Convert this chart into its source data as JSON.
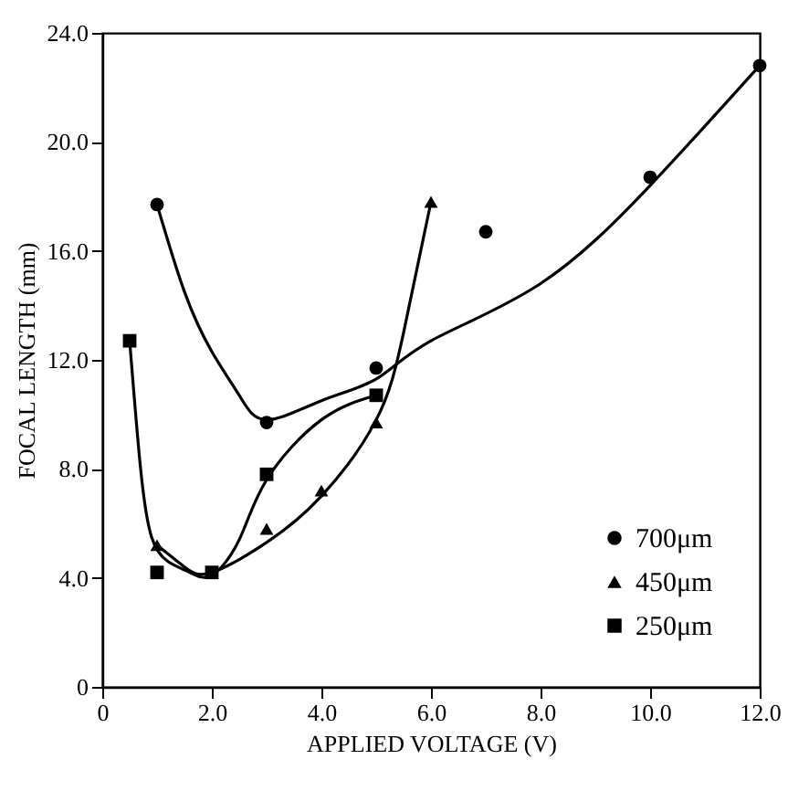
{
  "chart_data": {
    "type": "scatter",
    "xlabel": "APPLIED VOLTAGE (V)",
    "ylabel": "FOCAL LENGTH (mm)",
    "xlim": [
      0,
      12
    ],
    "xticks": [
      0,
      {
        "value": 2,
        "label": "2.0"
      },
      {
        "value": 4,
        "label": "4.0"
      },
      {
        "value": 6,
        "label": "6.0"
      },
      {
        "value": 8,
        "label": "8.0"
      },
      {
        "value": 10,
        "label": "10.0"
      },
      {
        "value": 12,
        "label": "12.0"
      }
    ],
    "ylim": [
      0,
      24
    ],
    "yticks": [
      0,
      {
        "value": 4,
        "label": "4.0"
      },
      {
        "value": 8,
        "label": "8.0"
      },
      {
        "value": 12,
        "label": "12.0"
      },
      {
        "value": 16,
        "label": "16.0"
      },
      {
        "value": 20,
        "label": "20.0"
      },
      {
        "value": 24,
        "label": "24.0"
      }
    ],
    "grid": false,
    "legend": "bottom right",
    "series": [
      {
        "name": "700μm",
        "color": "#000000",
        "marker": "circle",
        "x": [
          1,
          3,
          5,
          7,
          10,
          12
        ],
        "values": [
          17.7,
          9.7,
          11.7,
          16.7,
          18.7,
          22.8
        ]
      },
      {
        "name": "450μm",
        "color": "#000000",
        "marker": "triangle",
        "x": [
          1,
          3,
          4,
          5,
          6
        ],
        "values": [
          5.2,
          5.8,
          7.2,
          9.7,
          17.8
        ]
      },
      {
        "name": "250μm",
        "color": "#000000",
        "marker": "square",
        "x": [
          0.5,
          1,
          2,
          3,
          5
        ],
        "values": [
          12.7,
          4.2,
          4.2,
          7.8,
          10.7
        ]
      },
      {
        "type": "line",
        "color": "#000000",
        "marker": "none",
        "x": [
          1,
          1.5,
          2,
          2.5,
          3,
          4,
          5,
          6,
          8,
          10,
          12
        ],
        "values": [
          17.7,
          14.5,
          12.3,
          10.7,
          9.8,
          10.5,
          11.3,
          12.7,
          14.8,
          18.4,
          22.8
        ]
      },
      {
        "type": "line",
        "color": "#000000",
        "marker": "none",
        "x": [
          1,
          1.5,
          2,
          3,
          4,
          5,
          5.5,
          6
        ],
        "values": [
          5.2,
          4.4,
          4.2,
          5.3,
          7.0,
          9.8,
          13.0,
          17.8
        ]
      },
      {
        "type": "line",
        "color": "#000000",
        "marker": "none",
        "x": [
          0.5,
          0.7,
          0.9,
          1.2,
          1.6,
          2,
          2.5,
          3,
          4,
          5
        ],
        "values": [
          12.7,
          8.0,
          5.5,
          4.6,
          4.2,
          4.1,
          5.4,
          7.6,
          9.8,
          10.7
        ]
      }
    ]
  }
}
